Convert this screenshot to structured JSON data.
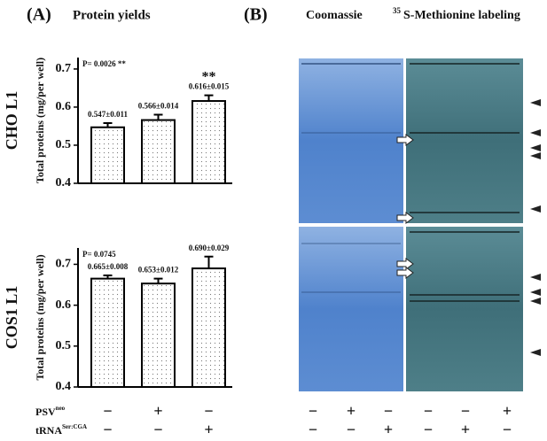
{
  "panel_a": {
    "letter": "(A)",
    "title": "Protein yields"
  },
  "panel_b": {
    "letter": "(B)",
    "title_left": "Coomassie",
    "title_right_sup": "35",
    "title_right": "S-Methionine labeling"
  },
  "chart_data": [
    {
      "type": "bar",
      "row_label": "CHO L1",
      "y_label": "Total proteins (mg/per well)",
      "values": [
        0.547,
        0.566,
        0.616
      ],
      "errors": [
        0.011,
        0.014,
        0.015
      ],
      "value_labels": [
        "0.547±0.011",
        "0.566±0.014",
        "0.616±0.015"
      ],
      "annotations": [
        "P= 0.0026 **",
        "**"
      ],
      "color": "#000000",
      "ylim": [
        0.4,
        0.73
      ],
      "yticks": [
        0.4,
        0.5,
        0.6,
        0.7
      ]
    },
    {
      "type": "bar",
      "row_label": "COS1 L1",
      "y_label": "Total proteins (mg/per well)",
      "values": [
        0.665,
        0.653,
        0.69
      ],
      "errors": [
        0.008,
        0.012,
        0.029
      ],
      "value_labels": [
        "0.665±0.008",
        "0.653±0.012",
        "0.690±0.029"
      ],
      "annotations": [
        "P= 0.0745"
      ],
      "color": "#000000",
      "ylim": [
        0.4,
        0.74
      ],
      "yticks": [
        0.4,
        0.5,
        0.6,
        0.7
      ]
    }
  ],
  "treatments": [
    {
      "label": "PSV",
      "sup": "neo",
      "bars": [
        "−",
        "+",
        "−"
      ],
      "gels": [
        "−",
        "+",
        "−",
        "−",
        "−",
        "+"
      ]
    },
    {
      "label": "tRNA",
      "sup": "Ser:CGA",
      "bars": [
        "−",
        "−",
        "+"
      ],
      "gels": [
        "−",
        "−",
        "+",
        "−",
        "+",
        "−"
      ]
    }
  ]
}
